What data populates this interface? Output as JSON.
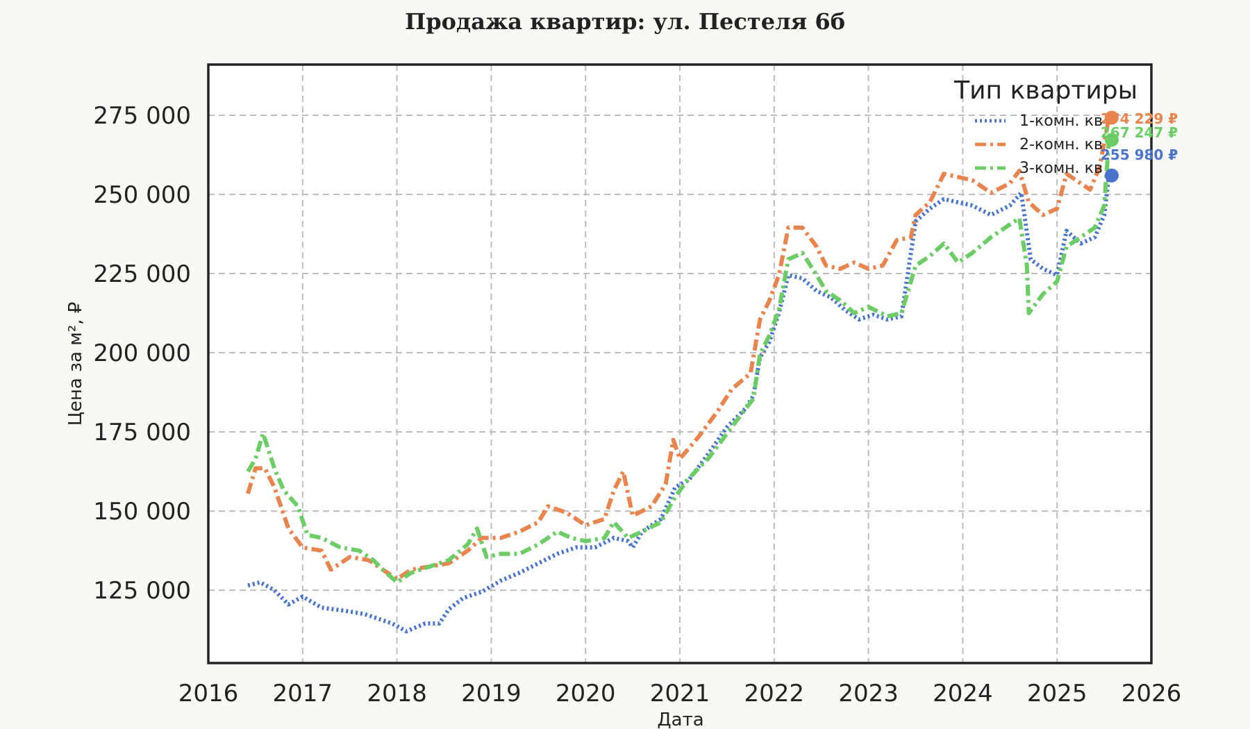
{
  "chart_data": {
    "type": "line",
    "title": "Продажа квартир: ул. Пестеля 6б",
    "xlabel": "Дата",
    "ylabel": "Цена за м², ₽",
    "xlim": [
      2016,
      2026
    ],
    "ylim": [
      102000,
      291000
    ],
    "x_ticks": [
      "2016",
      "2017",
      "2018",
      "2019",
      "2020",
      "2021",
      "2022",
      "2023",
      "2024",
      "2025",
      "2026"
    ],
    "y_ticks": [
      "125 000",
      "150 000",
      "175 000",
      "200 000",
      "225 000",
      "250 000",
      "275 000"
    ],
    "grid": true,
    "legend": {
      "title": "Тип квартиры",
      "placement": "top-right"
    },
    "series": [
      {
        "name": "1-комн. кв",
        "color": "#4a74c9",
        "style": "dotted",
        "end_label": "255 980 ₽",
        "points": [
          [
            2016.42,
            126500
          ],
          [
            2016.55,
            127500
          ],
          [
            2016.7,
            125000
          ],
          [
            2016.85,
            120500
          ],
          [
            2017.0,
            123000
          ],
          [
            2017.2,
            119500
          ],
          [
            2017.45,
            118500
          ],
          [
            2017.65,
            117500
          ],
          [
            2017.8,
            116000
          ],
          [
            2017.95,
            114500
          ],
          [
            2018.1,
            112000
          ],
          [
            2018.3,
            114500
          ],
          [
            2018.45,
            114500
          ],
          [
            2018.55,
            119000
          ],
          [
            2018.7,
            122500
          ],
          [
            2018.9,
            124500
          ],
          [
            2019.1,
            128000
          ],
          [
            2019.3,
            130500
          ],
          [
            2019.5,
            133500
          ],
          [
            2019.7,
            136500
          ],
          [
            2019.9,
            138500
          ],
          [
            2020.1,
            138500
          ],
          [
            2020.3,
            141500
          ],
          [
            2020.45,
            140500
          ],
          [
            2020.5,
            138500
          ],
          [
            2020.6,
            143500
          ],
          [
            2020.8,
            147500
          ],
          [
            2020.95,
            157500
          ],
          [
            2021.1,
            160000
          ],
          [
            2021.3,
            168000
          ],
          [
            2021.5,
            176500
          ],
          [
            2021.7,
            182500
          ],
          [
            2021.78,
            186500
          ],
          [
            2021.85,
            198500
          ],
          [
            2021.95,
            203500
          ],
          [
            2022.05,
            212500
          ],
          [
            2022.15,
            224500
          ],
          [
            2022.3,
            223500
          ],
          [
            2022.45,
            219500
          ],
          [
            2022.6,
            217500
          ],
          [
            2022.75,
            213500
          ],
          [
            2022.9,
            210500
          ],
          [
            2023.05,
            212000
          ],
          [
            2023.2,
            210500
          ],
          [
            2023.35,
            211500
          ],
          [
            2023.5,
            241500
          ],
          [
            2023.65,
            245500
          ],
          [
            2023.8,
            248500
          ],
          [
            2023.95,
            247500
          ],
          [
            2024.1,
            246500
          ],
          [
            2024.3,
            243500
          ],
          [
            2024.5,
            246500
          ],
          [
            2024.62,
            250500
          ],
          [
            2024.72,
            229500
          ],
          [
            2024.85,
            226500
          ],
          [
            2025.0,
            224500
          ],
          [
            2025.1,
            238500
          ],
          [
            2025.25,
            234500
          ],
          [
            2025.4,
            236500
          ],
          [
            2025.5,
            243500
          ],
          [
            2025.55,
            255980
          ]
        ]
      },
      {
        "name": "2-комн. кв",
        "color": "#e8844d",
        "style": "dashdot",
        "end_label": "274 229 ₽",
        "points": [
          [
            2016.42,
            155500
          ],
          [
            2016.5,
            163500
          ],
          [
            2016.6,
            163500
          ],
          [
            2016.7,
            157500
          ],
          [
            2016.85,
            144500
          ],
          [
            2017.0,
            138500
          ],
          [
            2017.2,
            137500
          ],
          [
            2017.3,
            131500
          ],
          [
            2017.5,
            135500
          ],
          [
            2017.7,
            134500
          ],
          [
            2017.85,
            131500
          ],
          [
            2018.0,
            128500
          ],
          [
            2018.15,
            131500
          ],
          [
            2018.35,
            132500
          ],
          [
            2018.55,
            133500
          ],
          [
            2018.75,
            137500
          ],
          [
            2018.9,
            141500
          ],
          [
            2019.1,
            141500
          ],
          [
            2019.3,
            143500
          ],
          [
            2019.5,
            146500
          ],
          [
            2019.6,
            151500
          ],
          [
            2019.8,
            149500
          ],
          [
            2020.0,
            145500
          ],
          [
            2020.2,
            147500
          ],
          [
            2020.3,
            156500
          ],
          [
            2020.4,
            162500
          ],
          [
            2020.5,
            148500
          ],
          [
            2020.7,
            151500
          ],
          [
            2020.85,
            158500
          ],
          [
            2020.93,
            172500
          ],
          [
            2021.0,
            166500
          ],
          [
            2021.2,
            173500
          ],
          [
            2021.4,
            181500
          ],
          [
            2021.55,
            188500
          ],
          [
            2021.75,
            193500
          ],
          [
            2021.85,
            210500
          ],
          [
            2021.95,
            216500
          ],
          [
            2022.05,
            224500
          ],
          [
            2022.15,
            239500
          ],
          [
            2022.3,
            239500
          ],
          [
            2022.45,
            233500
          ],
          [
            2022.55,
            227500
          ],
          [
            2022.7,
            226500
          ],
          [
            2022.85,
            228500
          ],
          [
            2023.0,
            226500
          ],
          [
            2023.15,
            227500
          ],
          [
            2023.3,
            235500
          ],
          [
            2023.45,
            236500
          ],
          [
            2023.5,
            243500
          ],
          [
            2023.65,
            247500
          ],
          [
            2023.8,
            256500
          ],
          [
            2023.95,
            255500
          ],
          [
            2024.1,
            254500
          ],
          [
            2024.3,
            250500
          ],
          [
            2024.5,
            253500
          ],
          [
            2024.6,
            257500
          ],
          [
            2024.7,
            247500
          ],
          [
            2024.85,
            243500
          ],
          [
            2025.0,
            245500
          ],
          [
            2025.1,
            256500
          ],
          [
            2025.2,
            254500
          ],
          [
            2025.35,
            251500
          ],
          [
            2025.45,
            258500
          ],
          [
            2025.55,
            274229
          ]
        ]
      },
      {
        "name": "3-комн. кв",
        "color": "#6ccc66",
        "style": "dashdot",
        "end_label": "267 247 ₽",
        "points": [
          [
            2016.42,
            162500
          ],
          [
            2016.5,
            166500
          ],
          [
            2016.58,
            174500
          ],
          [
            2016.7,
            163500
          ],
          [
            2016.8,
            156500
          ],
          [
            2016.95,
            151500
          ],
          [
            2017.05,
            142500
          ],
          [
            2017.2,
            141500
          ],
          [
            2017.4,
            138500
          ],
          [
            2017.6,
            137500
          ],
          [
            2017.75,
            134500
          ],
          [
            2017.85,
            131500
          ],
          [
            2018.0,
            127500
          ],
          [
            2018.15,
            130500
          ],
          [
            2018.35,
            132500
          ],
          [
            2018.55,
            134500
          ],
          [
            2018.75,
            139500
          ],
          [
            2018.85,
            144500
          ],
          [
            2018.95,
            135500
          ],
          [
            2019.1,
            136500
          ],
          [
            2019.3,
            136500
          ],
          [
            2019.5,
            139500
          ],
          [
            2019.7,
            143500
          ],
          [
            2019.85,
            141500
          ],
          [
            2020.0,
            140500
          ],
          [
            2020.2,
            141500
          ],
          [
            2020.3,
            146500
          ],
          [
            2020.45,
            141500
          ],
          [
            2020.6,
            143500
          ],
          [
            2020.8,
            146500
          ],
          [
            2020.95,
            154500
          ],
          [
            2021.1,
            160500
          ],
          [
            2021.3,
            166500
          ],
          [
            2021.45,
            172500
          ],
          [
            2021.6,
            178500
          ],
          [
            2021.78,
            185500
          ],
          [
            2021.85,
            199500
          ],
          [
            2021.95,
            205500
          ],
          [
            2022.05,
            213500
          ],
          [
            2022.15,
            229500
          ],
          [
            2022.3,
            231500
          ],
          [
            2022.45,
            224500
          ],
          [
            2022.55,
            219500
          ],
          [
            2022.7,
            216500
          ],
          [
            2022.85,
            212500
          ],
          [
            2023.0,
            214500
          ],
          [
            2023.2,
            211500
          ],
          [
            2023.35,
            212500
          ],
          [
            2023.5,
            227500
          ],
          [
            2023.65,
            230500
          ],
          [
            2023.8,
            234500
          ],
          [
            2023.95,
            228500
          ],
          [
            2024.1,
            231500
          ],
          [
            2024.3,
            236500
          ],
          [
            2024.5,
            240500
          ],
          [
            2024.6,
            242500
          ],
          [
            2024.68,
            227500
          ],
          [
            2024.7,
            212500
          ],
          [
            2024.85,
            218500
          ],
          [
            2025.0,
            222500
          ],
          [
            2025.1,
            233500
          ],
          [
            2025.25,
            236500
          ],
          [
            2025.4,
            239500
          ],
          [
            2025.5,
            246500
          ],
          [
            2025.55,
            267247
          ]
        ]
      }
    ]
  }
}
